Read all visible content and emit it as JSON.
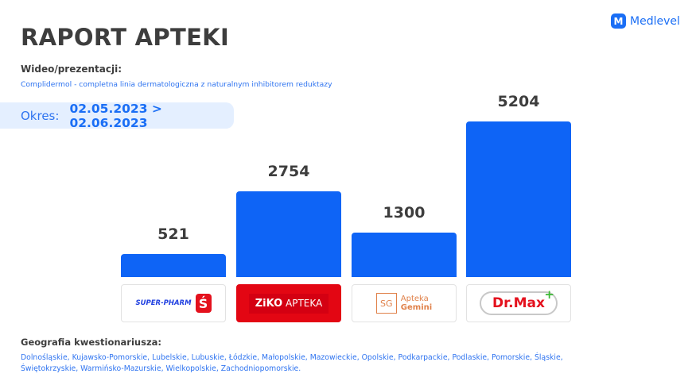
{
  "brand": {
    "name": "Medlevel",
    "icon": "M"
  },
  "title": "RAPORT APTEKI",
  "subtitle": "Wideo/prezentacji:",
  "description": "Complidermol - completna linia dermatologiczna z naturalnym inhibitorem reduktazy",
  "period": {
    "label": "Okres:",
    "value": "02.05.2023 > 02.06.2023"
  },
  "chart_data": {
    "type": "bar",
    "categories": [
      "Super-Pharm",
      "Ziko Apteka",
      "Apteka Gemini",
      "Dr.Max"
    ],
    "values": [
      521,
      2754,
      1300,
      5204
    ],
    "color": "#0e64f6",
    "title": "",
    "xlabel": "",
    "ylabel": ""
  },
  "logos": {
    "superpharm": {
      "text": "SUPER-PHARM",
      "mark": "Ś"
    },
    "ziko": {
      "bold": "ZiKO",
      "text": " APTEKA"
    },
    "gemini": {
      "line1": "Apteka",
      "line2": "Gemini",
      "mark": "SG"
    },
    "drmax": {
      "text": "Dr.Max",
      "plus": "+"
    }
  },
  "geography": {
    "heading": "Geografia kwestionariusza:",
    "regions": "Dolnośląskie, Kujawsko-Pomorskie, Lubelskie, Lubuskie, Łódzkie, Małopolskie, Mazowieckie, Opolskie, Podkarpackie, Podlaskie, Pomorskie, Śląskie, Świętokrzyskie, Warmińsko-Mazurskie, Wielkopolskie, Zachodniopomorskie."
  }
}
